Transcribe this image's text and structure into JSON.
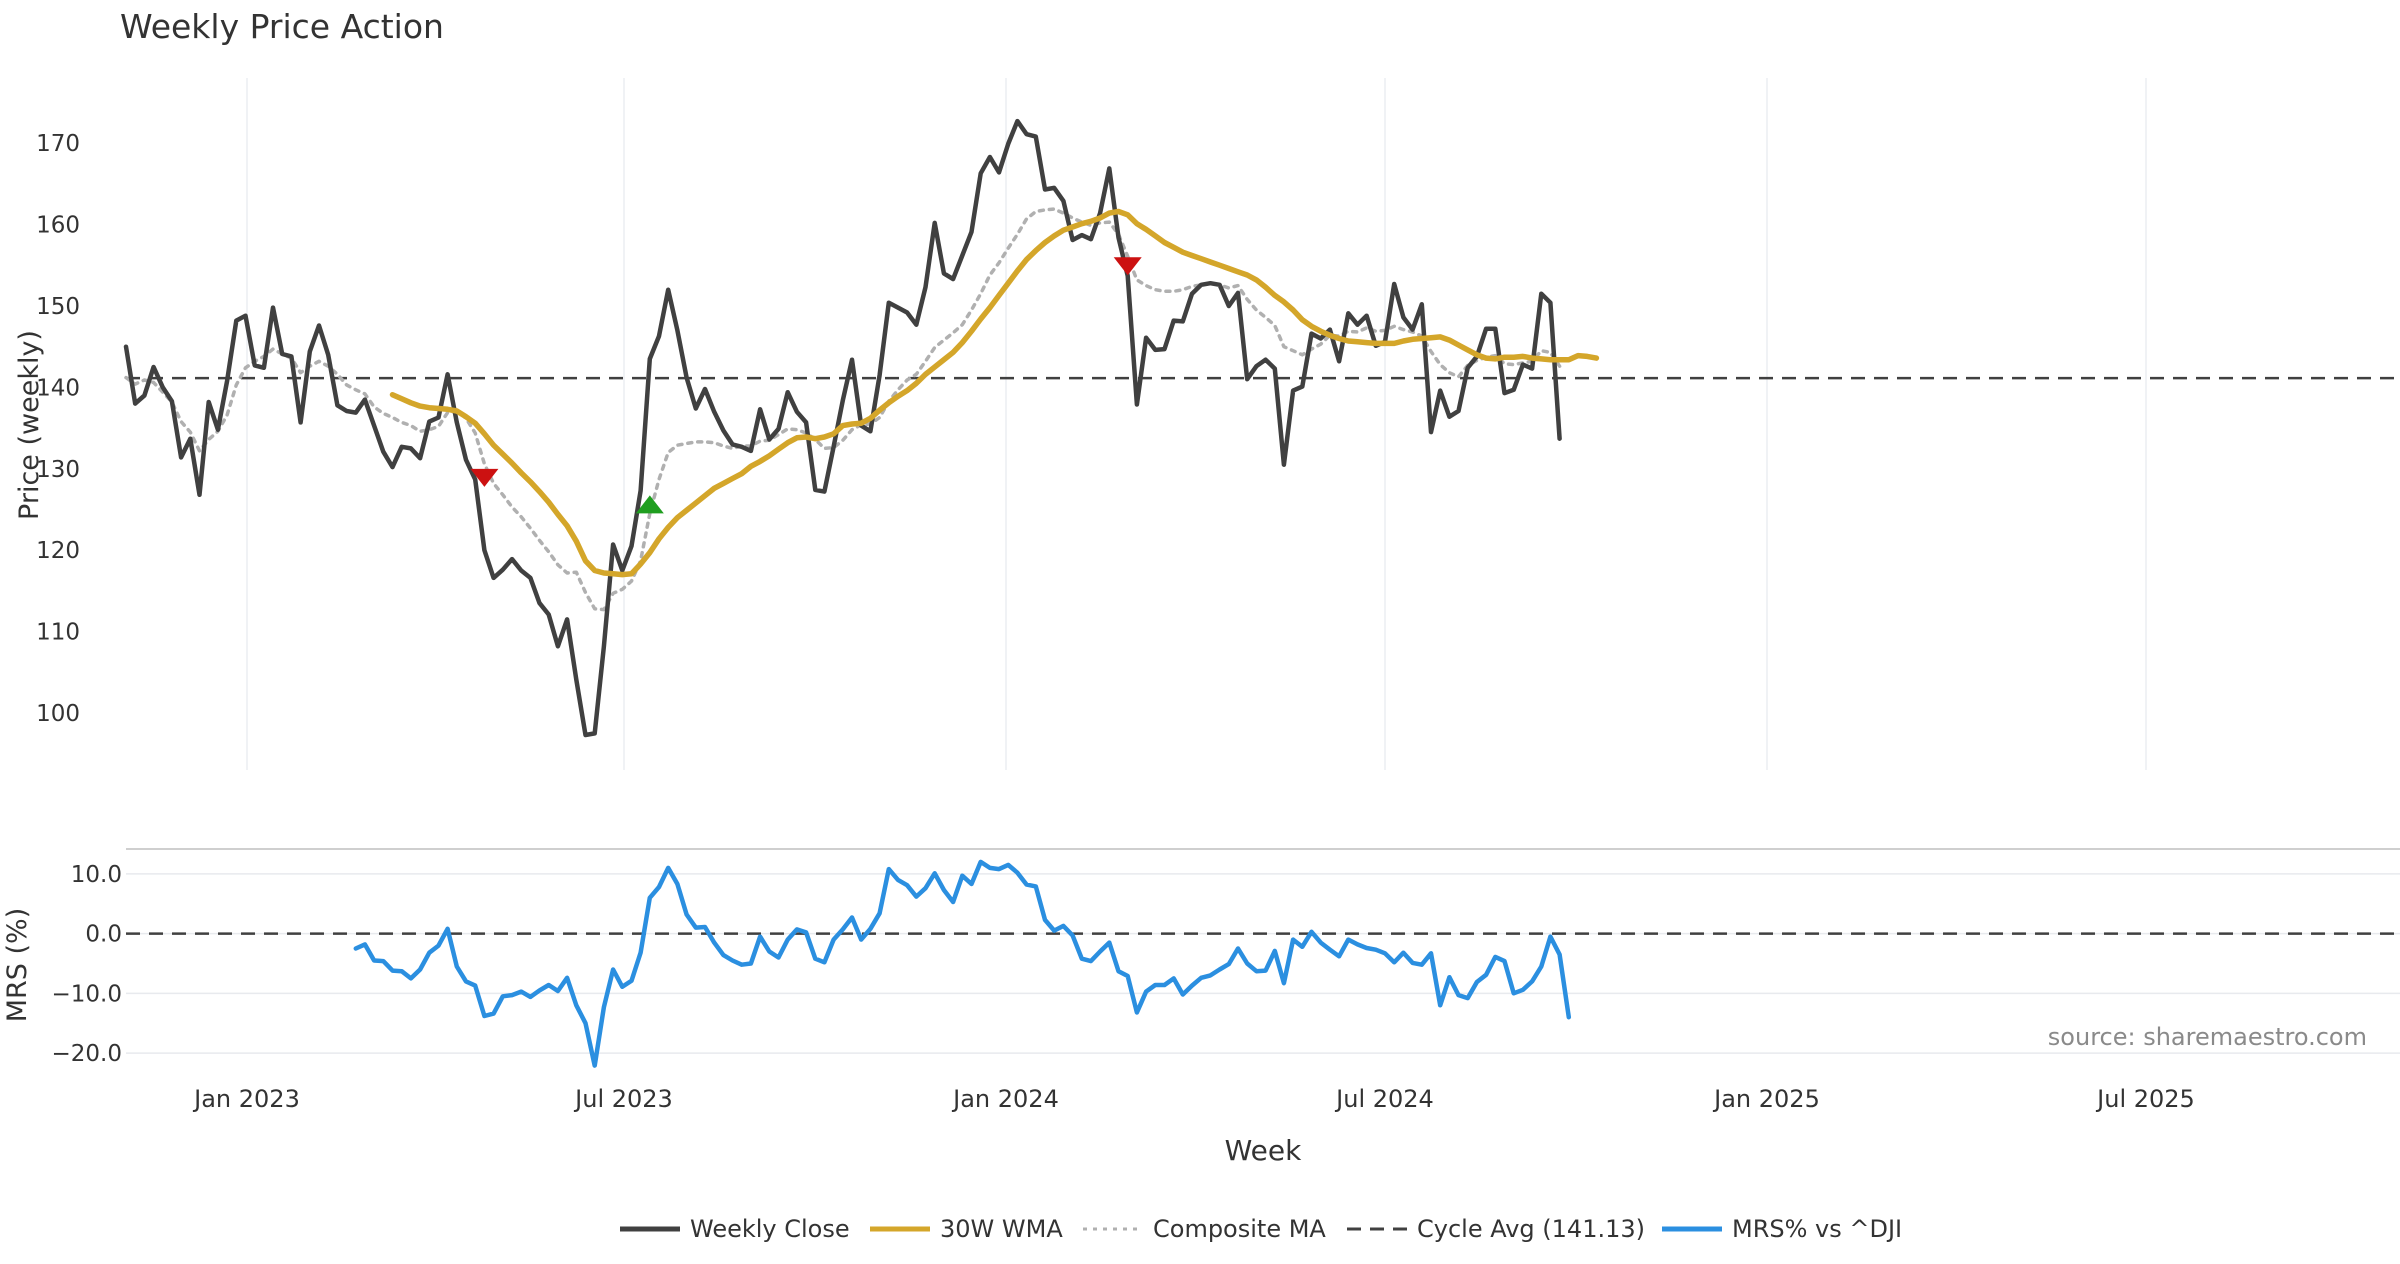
{
  "chart_data": {
    "type": "line",
    "title": "Weekly Price Action",
    "xlabel": "Week",
    "x_ticks": [
      "Jan 2023",
      "Jul 2023",
      "Jan 2024",
      "Jul 2024",
      "Jan 2025",
      "Jul 2025"
    ],
    "price_panel": {
      "ylabel": "Price (weekly)",
      "ylim": [
        93,
        178
      ],
      "y_ticks": [
        100,
        110,
        120,
        130,
        140,
        150,
        160,
        170
      ],
      "cycle_avg": 141.13,
      "series": [
        {
          "name": "Weekly Close",
          "color": "#404040",
          "start_week": 0,
          "values": [
            145,
            138,
            139,
            142.5,
            140,
            138.3,
            131.4,
            133.7,
            126.8,
            138.2,
            134.8,
            140.8,
            148.2,
            148.8,
            142.7,
            142.4,
            149.8,
            144.1,
            143.8,
            135.7,
            144.4,
            147.6,
            144.0,
            137.8,
            137.1,
            136.9,
            138.5,
            135.3,
            132.1,
            130.2,
            132.7,
            132.5,
            131.3,
            135.8,
            136.3,
            141.6,
            135.7,
            131.1,
            128.7,
            120.0,
            116.6,
            117.6,
            118.9,
            117.5,
            116.6,
            113.5,
            112.1,
            108.2,
            111.5,
            104.1,
            97.3,
            97.5,
            108.2,
            120.7,
            117.5,
            120.5,
            127.3,
            143.5,
            146.3,
            152.0,
            147.0,
            141.2,
            137.4,
            139.8,
            137.0,
            134.7,
            133.0,
            132.7,
            132.2,
            137.3,
            133.6,
            134.9,
            139.4,
            137.0,
            135.7,
            127.4,
            127.2,
            132.7,
            138.4,
            143.4,
            135.3,
            134.6,
            141.5,
            150.4,
            149.8,
            149.2,
            147.7,
            152.3,
            160.2,
            154.0,
            153.3,
            156.2,
            159.1,
            166.3,
            168.3,
            166.4,
            169.9,
            172.7,
            171.1,
            170.8,
            164.3,
            164.5,
            162.9,
            158.1,
            158.7,
            158.2,
            161.4,
            166.9,
            158.4,
            153.7,
            137.9,
            146.1,
            144.6,
            144.7,
            148.2,
            148.1,
            151.5,
            152.6,
            152.8,
            152.6,
            150.0,
            151.6,
            141.0,
            142.6,
            143.4,
            142.3,
            130.5,
            139.6,
            140.1,
            146.6,
            146.0,
            147.1,
            143.2,
            149.1,
            147.7,
            148.8,
            145.1,
            145.6,
            152.7,
            148.6,
            147.1,
            150.2,
            134.5,
            139.6,
            136.4,
            137.1,
            142.4,
            143.8,
            147.2,
            147.2,
            139.3,
            139.7,
            142.8,
            142.3,
            151.5,
            150.4,
            133.7
          ]
        },
        {
          "name": "30W WMA",
          "color": "#d4a62a",
          "start_week": 29,
          "values": [
            139.1,
            138.6,
            138.1,
            137.7,
            137.5,
            137.4,
            137.3,
            137.1,
            136.4,
            135.6,
            134.3,
            132.9,
            131.8,
            130.7,
            129.5,
            128.4,
            127.2,
            125.9,
            124.4,
            123.0,
            121.1,
            118.7,
            117.5,
            117.2,
            117.1,
            117.0,
            117.1,
            118.3,
            119.7,
            121.4,
            122.8,
            124.0,
            124.9,
            125.8,
            126.7,
            127.6,
            128.2,
            128.8,
            129.4,
            130.3,
            130.9,
            131.6,
            132.4,
            133.2,
            133.8,
            133.9,
            133.7,
            133.9,
            134.3,
            135.3,
            135.5,
            135.6,
            136.2,
            137.2,
            138.1,
            138.9,
            139.6,
            140.5,
            141.6,
            142.5,
            143.4,
            144.3,
            145.5,
            146.9,
            148.4,
            149.8,
            151.3,
            152.8,
            154.3,
            155.7,
            156.8,
            157.8,
            158.6,
            159.3,
            159.7,
            160.1,
            160.4,
            160.8,
            161.4,
            161.6,
            161.2,
            160.1,
            159.4,
            158.6,
            157.8,
            157.2,
            156.6,
            156.2,
            155.8,
            155.4,
            155.0,
            154.6,
            154.2,
            153.8,
            153.2,
            152.3,
            151.3,
            150.5,
            149.5,
            148.3,
            147.5,
            146.9,
            146.4,
            146.0,
            145.7,
            145.6,
            145.5,
            145.4,
            145.4,
            145.4,
            145.7,
            145.9,
            146.0,
            146.1,
            146.2,
            145.8,
            145.2,
            144.6,
            144.0,
            143.6,
            143.5,
            143.7,
            143.7,
            143.8,
            143.6,
            143.5,
            143.4,
            143.4,
            143.4,
            143.9,
            143.8,
            143.6
          ]
        },
        {
          "name": "Composite MA",
          "color": "#b0b0b0",
          "start_week": 0,
          "values": [
            141.2,
            140.4,
            140.9,
            140.6,
            139.4,
            138.2,
            135.8,
            134.5,
            132.2,
            133.6,
            134.6,
            136.6,
            140.3,
            142.4,
            143.2,
            143.8,
            144.7,
            144.1,
            143.6,
            141.8,
            142.6,
            143.2,
            142.6,
            141.6,
            140.3,
            139.7,
            139.2,
            137.6,
            136.8,
            136.3,
            135.7,
            135.3,
            134.6,
            134.8,
            135.2,
            136.9,
            137.1,
            136.2,
            134.4,
            130.6,
            128.2,
            126.8,
            125.3,
            124.1,
            122.7,
            121.2,
            119.8,
            118.2,
            117.2,
            117.3,
            114.8,
            112.8,
            112.7,
            114.7,
            115.2,
            116.2,
            118.7,
            124.5,
            128.7,
            132.0,
            132.9,
            133.1,
            133.3,
            133.3,
            133.2,
            132.8,
            132.5,
            132.8,
            132.8,
            133.4,
            133.5,
            134.2,
            134.9,
            134.8,
            134.4,
            133.6,
            132.5,
            132.6,
            133.5,
            134.8,
            135.4,
            135.5,
            136.3,
            138.3,
            139.7,
            140.9,
            141.6,
            143.2,
            144.9,
            145.8,
            146.7,
            147.7,
            149.5,
            151.5,
            153.8,
            155.3,
            157.1,
            158.8,
            160.7,
            161.6,
            161.8,
            161.9,
            161.4,
            160.8,
            160.3,
            159.9,
            160.2,
            160.3,
            158.8,
            156.1,
            153.2,
            152.5,
            152.0,
            151.8,
            151.8,
            152.0,
            152.4,
            152.6,
            152.8,
            152.6,
            152.2,
            152.5,
            150.8,
            149.5,
            148.6,
            147.6,
            145.0,
            144.5,
            144.0,
            144.7,
            145.3,
            146.4,
            146.3,
            146.9,
            146.8,
            147.3,
            146.9,
            147.0,
            147.5,
            147.1,
            146.8,
            146.3,
            144.4,
            142.8,
            141.8,
            141.3,
            142.7,
            143.3,
            143.7,
            143.9,
            142.9,
            142.8,
            143.0,
            143.2,
            144.5,
            144.3,
            142.6
          ]
        }
      ],
      "signals": [
        {
          "type": "sell",
          "week": 39,
          "value": 129,
          "color": "#cc1111"
        },
        {
          "type": "buy",
          "week": 57,
          "value": 125.5,
          "color": "#1f9e1f"
        },
        {
          "type": "sell",
          "week": 109,
          "value": 155,
          "color": "#cc1111"
        }
      ]
    },
    "mrs_panel": {
      "ylabel": "MRS (%)",
      "ylim": [
        -22.5,
        14
      ],
      "y_ticks": [
        10.0,
        0.0,
        -10.0,
        -20.0
      ],
      "y_tick_labels": [
        "10.0",
        "0.0",
        "−10.0",
        "−20.0"
      ],
      "reference": 0,
      "series": [
        {
          "name": "MRS% vs ^DJI",
          "color": "#2b8fe0",
          "start_week": 25,
          "values": [
            -2.5,
            -1.8,
            -4.5,
            -4.6,
            -6.2,
            -6.3,
            -7.5,
            -6.0,
            -3.2,
            -2.0,
            0.8,
            -5.5,
            -8.0,
            -8.7,
            -13.8,
            -13.4,
            -10.5,
            -10.3,
            -9.7,
            -10.6,
            -9.5,
            -8.6,
            -9.6,
            -7.4,
            -12.0,
            -15.0,
            -22.1,
            -12.3,
            -6.0,
            -8.9,
            -7.9,
            -3.2,
            6.0,
            7.8,
            11.0,
            8.3,
            3.2,
            1.0,
            1.1,
            -1.5,
            -3.6,
            -4.5,
            -5.2,
            -5.0,
            -0.5,
            -3.0,
            -4.0,
            -1.0,
            0.7,
            0.2,
            -4.2,
            -4.8,
            -1.0,
            0.7,
            2.7,
            -1.0,
            0.8,
            3.4,
            10.8,
            9.0,
            8.1,
            6.2,
            7.6,
            10.1,
            7.3,
            5.3,
            9.7,
            8.3,
            12.0,
            11.0,
            10.8,
            11.5,
            10.2,
            8.2,
            7.9,
            2.3,
            0.5,
            1.3,
            -0.3,
            -4.2,
            -4.6,
            -3.0,
            -1.5,
            -6.3,
            -7.1,
            -13.2,
            -9.7,
            -8.6,
            -8.6,
            -7.5,
            -10.2,
            -8.7,
            -7.4,
            -7.0,
            -6.0,
            -5.1,
            -2.5,
            -5.0,
            -6.3,
            -6.2,
            -2.9,
            -8.3,
            -1.0,
            -2.2,
            0.3,
            -1.5,
            -2.7,
            -3.8,
            -1.0,
            -1.8,
            -2.4,
            -2.7,
            -3.3,
            -4.8,
            -3.2,
            -4.9,
            -5.2,
            -3.3,
            -12.0,
            -7.3,
            -10.3,
            -10.8,
            -8.1,
            -6.9,
            -3.9,
            -4.6,
            -10.0,
            -9.4,
            -8.0,
            -5.5,
            -0.5,
            -3.5,
            -14.0
          ]
        }
      ]
    },
    "legend": [
      {
        "label": "Weekly Close",
        "color": "#404040",
        "style": "solid"
      },
      {
        "label": "30W WMA",
        "color": "#d4a62a",
        "style": "solid"
      },
      {
        "label": "Composite MA",
        "color": "#b0b0b0",
        "style": "dotted"
      },
      {
        "label": "Cycle Avg (141.13)",
        "color": "#404040",
        "style": "dashed"
      },
      {
        "label": "MRS% vs ^DJI",
        "color": "#2b8fe0",
        "style": "solid"
      }
    ],
    "legend_position": "bottom-center",
    "source_text": "source: sharemaestro.com",
    "grid": true
  }
}
